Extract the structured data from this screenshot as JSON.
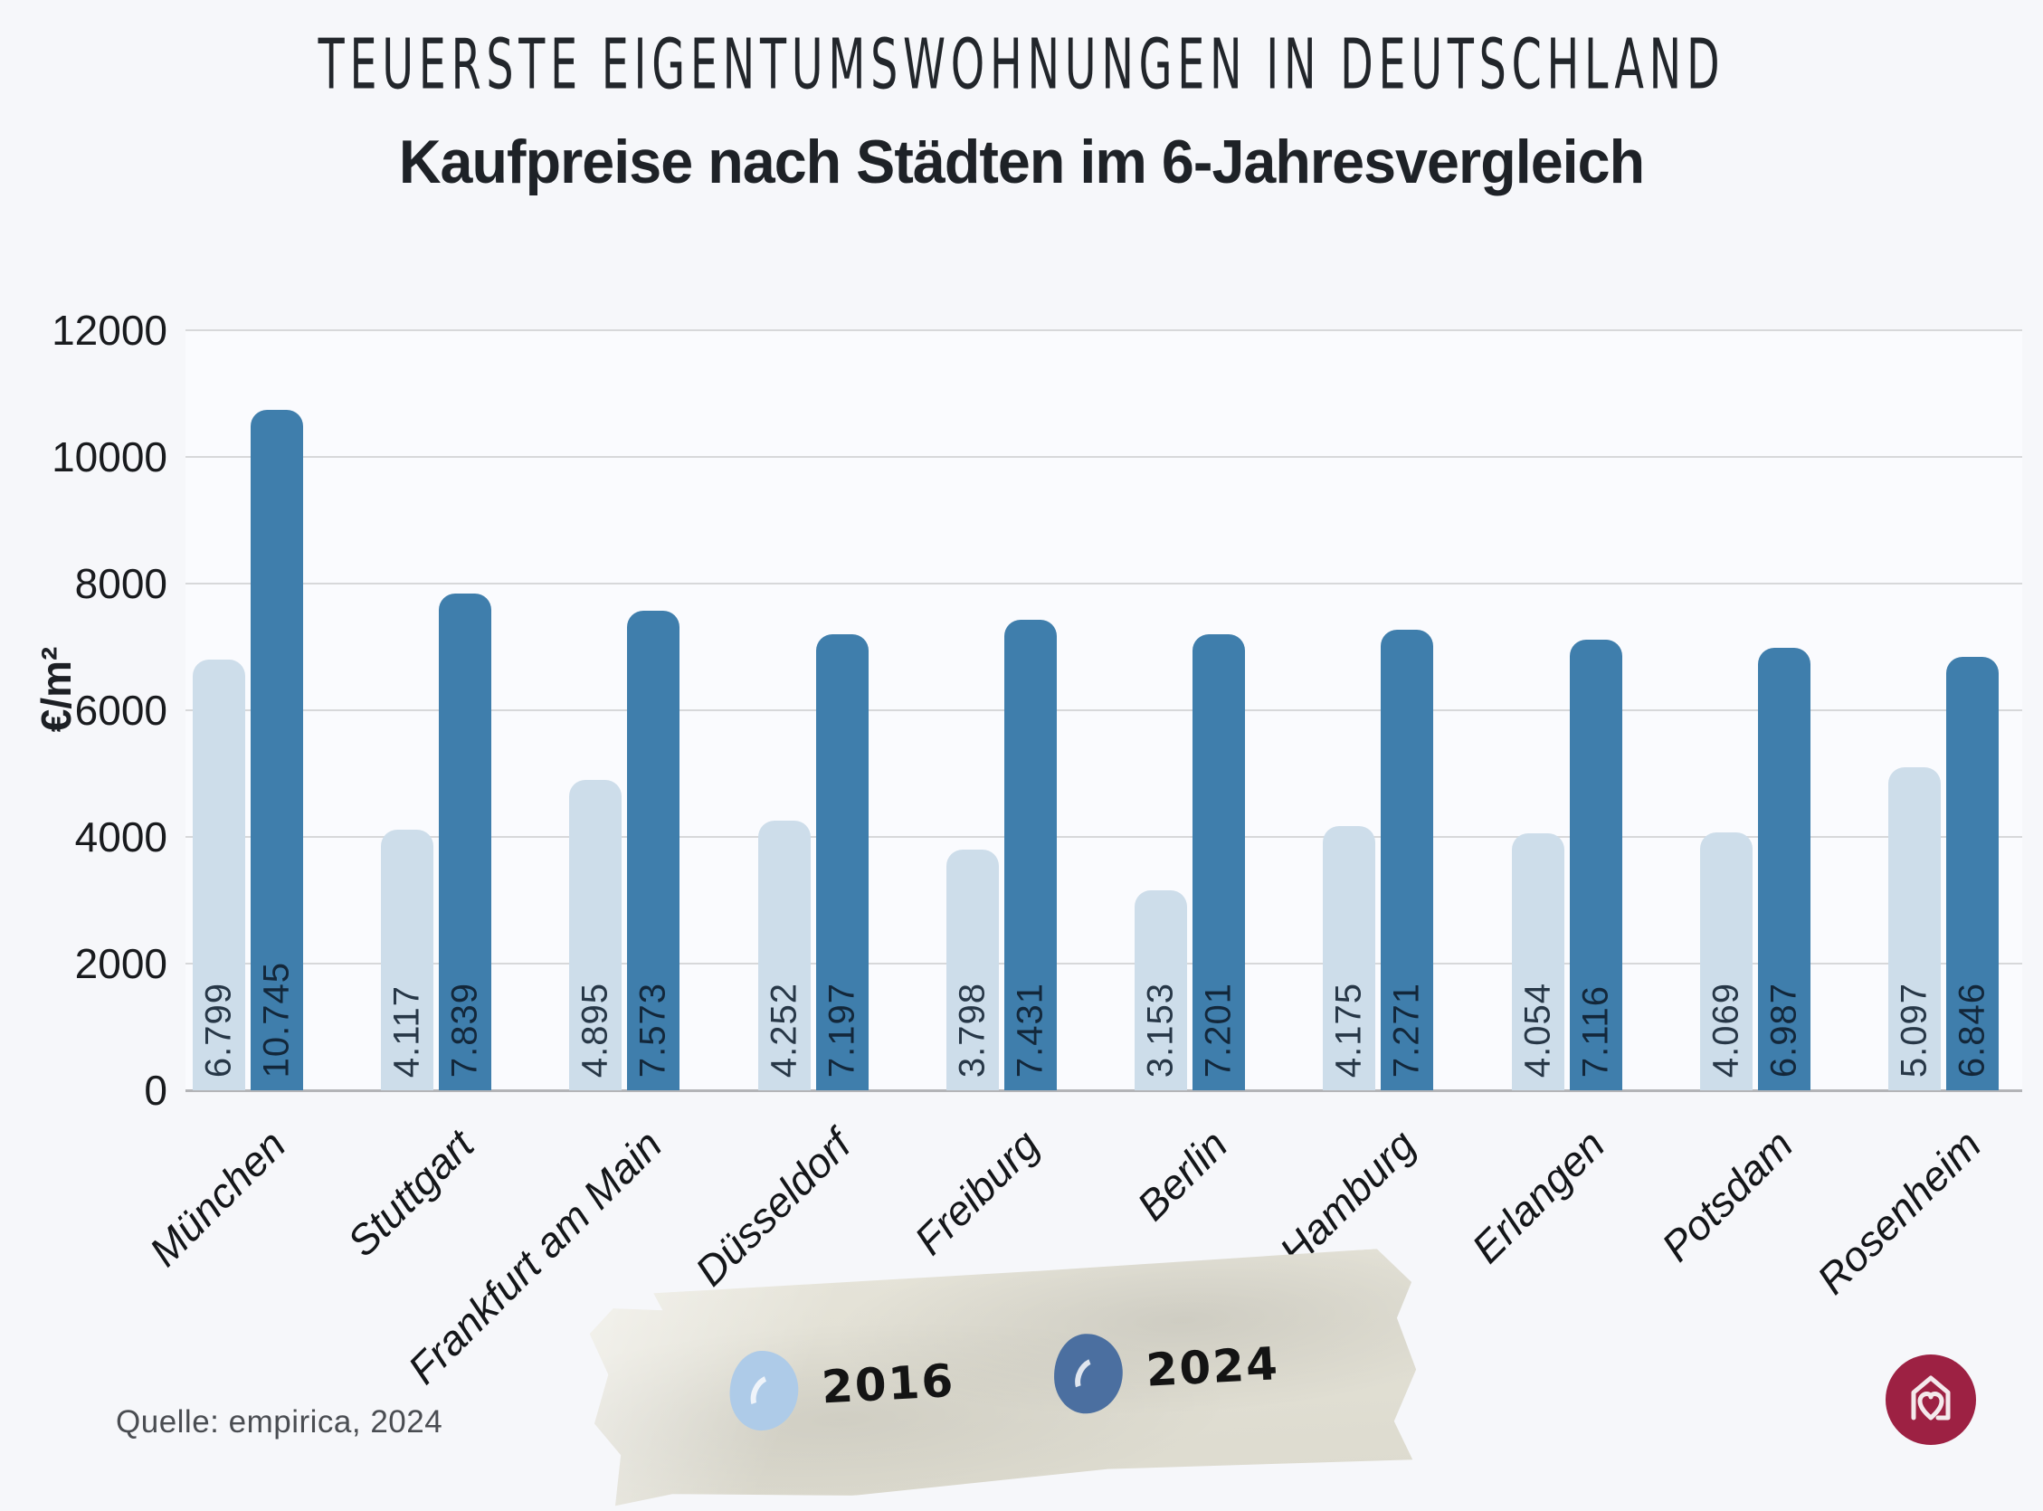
{
  "titles": {
    "kicker": "TEUERSTE EIGENTUMSWOHNUNGEN IN DEUTSCHLAND",
    "title": "Kaufpreise nach Städten im 6-Jahresvergleich"
  },
  "chart_data": {
    "type": "bar",
    "title": "Kaufpreise nach Städten im 6-Jahresvergleich",
    "categories": [
      "München",
      "Stuttgart",
      "Frankfurt am Main",
      "Düsseldorf",
      "Freiburg",
      "Berlin",
      "Hamburg",
      "Erlangen",
      "Potsdam",
      "Rosenheim"
    ],
    "series": [
      {
        "name": "2016",
        "values": [
          6799,
          4117,
          4895,
          4252,
          3798,
          3153,
          4175,
          4054,
          4069,
          5097
        ],
        "labels": [
          "6.799",
          "4.117",
          "4.895",
          "4.252",
          "3.798",
          "3.153",
          "4.175",
          "4.054",
          "4.069",
          "5.097"
        ],
        "color": "#cdddea",
        "label_color": "#273747"
      },
      {
        "name": "2024",
        "values": [
          10745,
          7839,
          7573,
          7197,
          7431,
          7201,
          7271,
          7116,
          6987,
          6846
        ],
        "labels": [
          "10.745",
          "7.839",
          "7.573",
          "7.197",
          "7.431",
          "7.201",
          "7.271",
          "7.116",
          "6.987",
          "6.846"
        ],
        "color": "#3f7eac",
        "label_color": "#13273a"
      }
    ],
    "xlabel": "",
    "ylabel": "€/m²",
    "ylim": [
      0,
      12000
    ],
    "yticks": [
      0,
      2000,
      4000,
      6000,
      8000,
      10000,
      12000
    ],
    "grid": true,
    "legend_position": "bottom"
  },
  "legend": {
    "items": [
      {
        "label": "2016",
        "color": "#aecbe8"
      },
      {
        "label": "2024",
        "color": "#4b6fa0"
      }
    ]
  },
  "source": "Quelle: empirica, 2024",
  "logo": {
    "color": "#9d2143"
  }
}
